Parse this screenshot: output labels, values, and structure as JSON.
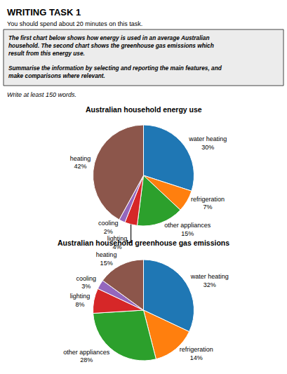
{
  "title": "WRITING TASK 1",
  "subtitle": "You should spend about 20 minutes on this task.",
  "annotations": [
    "The first chart below shows how energy is used in an average Australian\nhousehold. The second chart shows the greenhouse gas emissions which\nresult from this energy use.",
    "Summarise the information by selecting and reporting the main features, and\nmake comparisons where relevant.",
    "Write at least 150 words."
  ],
  "chart_data": [
    {
      "type": "pie",
      "title": "Australian household energy use",
      "categories": [
        "water heating",
        "refrigeration",
        "other appliances",
        "lighting",
        "cooling",
        "heating"
      ],
      "values": [
        30,
        7,
        15,
        4,
        2,
        42
      ],
      "value_labels": [
        "30%",
        "7%",
        "15%",
        "4%",
        "2%",
        "42%"
      ]
    },
    {
      "type": "pie",
      "title": "Australian household greenhouse gas emissions",
      "categories": [
        "water heating",
        "refrigeration",
        "other appliances",
        "lighting",
        "cooling",
        "heating"
      ],
      "values": [
        32,
        14,
        28,
        8,
        3,
        15
      ],
      "value_labels": [
        "32%",
        "14%",
        "28%",
        "8%",
        "3%",
        "15%"
      ]
    }
  ]
}
